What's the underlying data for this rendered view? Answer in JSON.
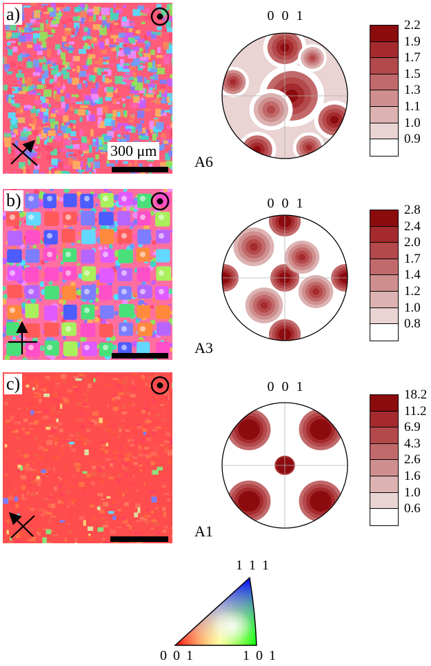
{
  "panels": [
    {
      "letter": "a)",
      "sample": "A6",
      "pole_figure_label": "0 0 1",
      "legend": [
        "2.2",
        "1.9",
        "1.7",
        "1.5",
        "1.3",
        "1.1",
        "1.0",
        "0.9"
      ],
      "scale_bar_label": "300 μm",
      "map_style": "random",
      "axes_style": "diagonal"
    },
    {
      "letter": "b)",
      "sample": "A3",
      "pole_figure_label": "0 0 1",
      "legend": [
        "2.8",
        "2.4",
        "2.0",
        "1.7",
        "1.4",
        "1.2",
        "1.0",
        "0.8"
      ],
      "scale_bar_label": "",
      "map_style": "grid",
      "axes_style": "orthogonal"
    },
    {
      "letter": "c)",
      "sample": "A1",
      "pole_figure_label": "0 0 1",
      "legend": [
        "18.2",
        "11.2",
        "6.9",
        "4.3",
        "2.6",
        "1.6",
        "1.0",
        "0.6"
      ],
      "scale_bar_label": "",
      "map_style": "red",
      "axes_style": "diagonal"
    }
  ],
  "ipf_key": {
    "top_label": "1 1 1",
    "left_label": "0 0 1",
    "right_label": "1 0 1"
  },
  "colors": {
    "legend_shades": [
      "#8c0b0f",
      "#a42a2d",
      "#b4494b",
      "#c26a6b",
      "#cf8f8f",
      "#ddb2b2",
      "#ead3d3",
      "#ffffff"
    ]
  }
}
